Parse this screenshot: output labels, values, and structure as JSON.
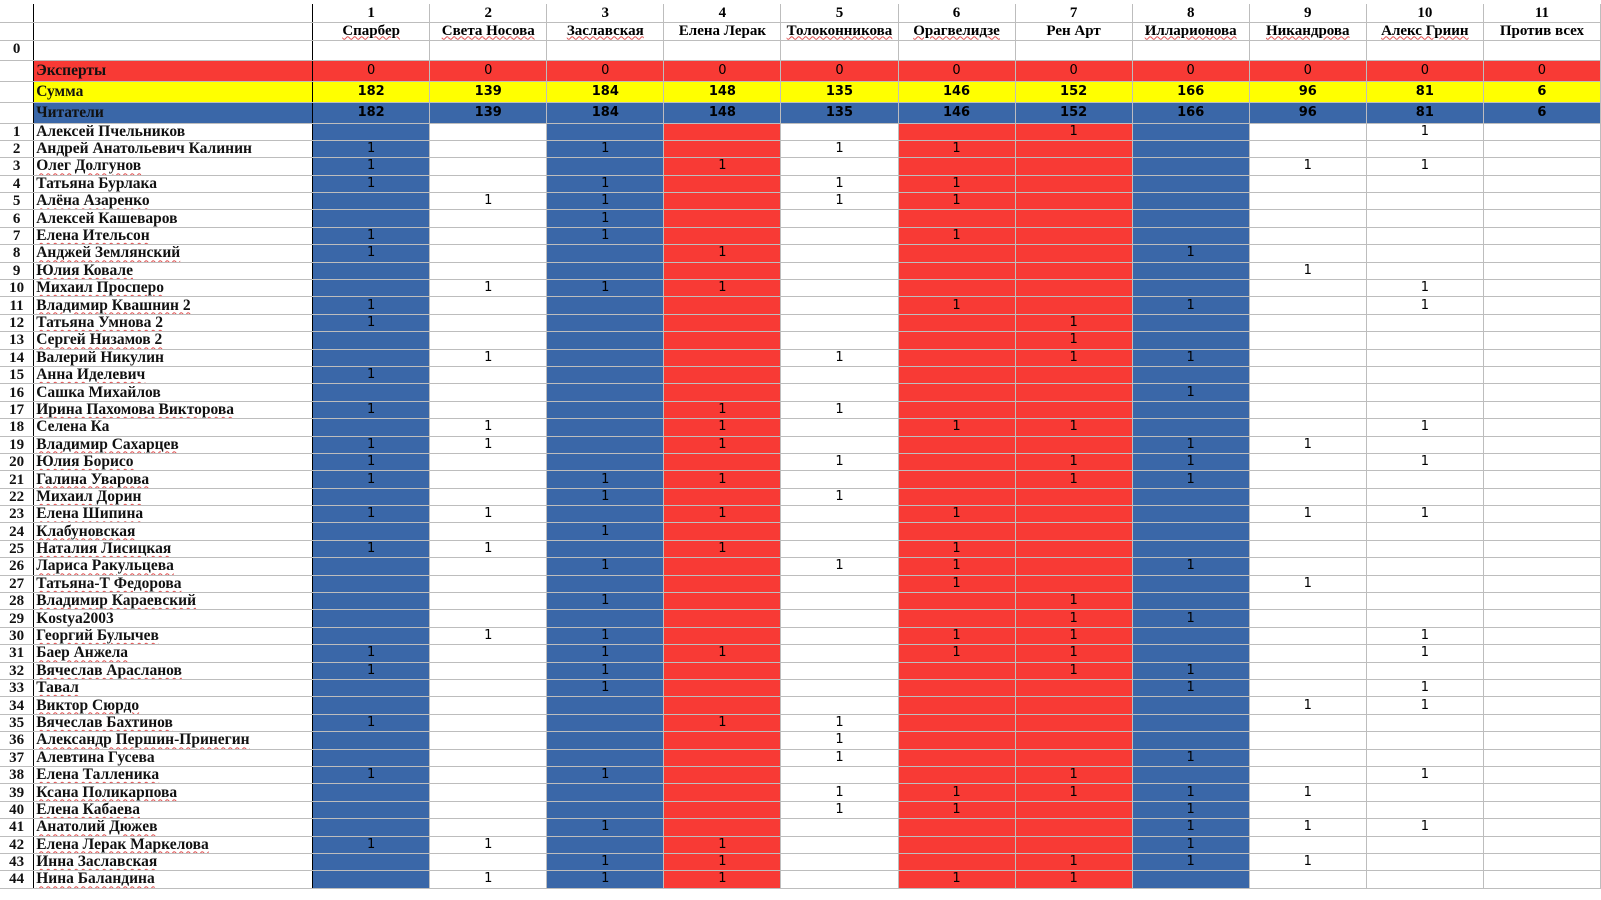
{
  "columns": [
    {
      "num": "1",
      "name": "Спарбер",
      "color": "blue",
      "wavy": true
    },
    {
      "num": "2",
      "name": "Света Носова",
      "color": "white",
      "wavy": true
    },
    {
      "num": "3",
      "name": "Заславская",
      "color": "blue",
      "wavy": true
    },
    {
      "num": "4",
      "name": "Елена Лерак",
      "color": "red",
      "wavy": false
    },
    {
      "num": "5",
      "name": "Толоконникова",
      "color": "white",
      "wavy": true
    },
    {
      "num": "6",
      "name": "Орагвелидзе",
      "color": "red",
      "wavy": true
    },
    {
      "num": "7",
      "name": "Рен Арт",
      "color": "red",
      "wavy": false
    },
    {
      "num": "8",
      "name": "Илларионова",
      "color": "blue",
      "wavy": true
    },
    {
      "num": "9",
      "name": "Никандрова",
      "color": "white",
      "wavy": true
    },
    {
      "num": "10",
      "name": "Алекс Гриин",
      "color": "white",
      "wavy": true
    },
    {
      "num": "11",
      "name": "Против всех",
      "color": "white",
      "wavy": false
    }
  ],
  "zero_row_label": "0",
  "summary": {
    "experts": {
      "label": "Эксперты",
      "values": [
        "0",
        "0",
        "0",
        "0",
        "0",
        "0",
        "0",
        "0",
        "0",
        "0",
        "0"
      ]
    },
    "sum": {
      "label": "Сумма",
      "values": [
        "182",
        "139",
        "184",
        "148",
        "135",
        "146",
        "152",
        "166",
        "96",
        "81",
        "6"
      ]
    },
    "readers": {
      "label": "Читатели",
      "values": [
        "182",
        "139",
        "184",
        "148",
        "135",
        "146",
        "152",
        "166",
        "96",
        "81",
        "6"
      ]
    }
  },
  "colors": {
    "blue": "#3a67a8",
    "red": "#f83a35",
    "yellow": "#ffff00"
  },
  "rows": [
    {
      "n": "1",
      "name": "Алексей Пчельников",
      "wavy": false,
      "v": [
        "",
        "",
        "",
        "",
        "",
        "",
        "1",
        "",
        "",
        "1",
        ""
      ]
    },
    {
      "n": "2",
      "name": "Андрей Анатольевич Калинин",
      "wavy": false,
      "v": [
        "1",
        "",
        "1",
        "",
        "1",
        "1",
        "",
        "",
        "",
        "",
        ""
      ]
    },
    {
      "n": "3",
      "name": "Олег Долгунов",
      "wavy": true,
      "v": [
        "1",
        "",
        "",
        "1",
        "",
        "",
        "",
        "",
        "1",
        "1",
        ""
      ]
    },
    {
      "n": "4",
      "name": "Татьяна Бурлака",
      "wavy": false,
      "v": [
        "1",
        "",
        "1",
        "",
        "1",
        "1",
        "",
        "",
        "",
        "",
        ""
      ]
    },
    {
      "n": "5",
      "name": "Алёна Азаренко",
      "wavy": true,
      "v": [
        "",
        "1",
        "1",
        "",
        "1",
        "1",
        "",
        "",
        "",
        "",
        ""
      ]
    },
    {
      "n": "6",
      "name": "Алексей Кашеваров",
      "wavy": false,
      "v": [
        "",
        "",
        "1",
        "",
        "",
        "",
        "",
        "",
        "",
        "",
        ""
      ]
    },
    {
      "n": "7",
      "name": "Елена Ительсон",
      "wavy": true,
      "v": [
        "1",
        "",
        "1",
        "",
        "",
        "1",
        "",
        "",
        "",
        "",
        ""
      ]
    },
    {
      "n": "8",
      "name": "Анджей Землянский",
      "wavy": true,
      "v": [
        "1",
        "",
        "",
        "1",
        "",
        "",
        "",
        "1",
        "",
        "",
        ""
      ]
    },
    {
      "n": "9",
      "name": "Юлия Ковале",
      "wavy": true,
      "v": [
        "",
        "",
        "",
        "",
        "",
        "",
        "",
        "",
        "1",
        "",
        ""
      ]
    },
    {
      "n": "10",
      "name": "Михаил Просперо",
      "wavy": true,
      "v": [
        "",
        "1",
        "1",
        "1",
        "",
        "",
        "",
        "",
        "",
        "1",
        ""
      ]
    },
    {
      "n": "11",
      "name": "Владимир Квашнин 2",
      "wavy": true,
      "v": [
        "1",
        "",
        "",
        "",
        "",
        "1",
        "",
        "1",
        "",
        "1",
        ""
      ]
    },
    {
      "n": "12",
      "name": "Татьяна Умнова 2",
      "wavy": true,
      "v": [
        "1",
        "",
        "",
        "",
        "",
        "",
        "1",
        "",
        "",
        "",
        ""
      ]
    },
    {
      "n": "13",
      "name": "Сергей Низамов 2",
      "wavy": true,
      "v": [
        "",
        "",
        "",
        "",
        "",
        "",
        "1",
        "",
        "",
        "",
        ""
      ]
    },
    {
      "n": "14",
      "name": "Валерий Никулин",
      "wavy": false,
      "v": [
        "",
        "1",
        "",
        "",
        "1",
        "",
        "1",
        "1",
        "",
        "",
        ""
      ]
    },
    {
      "n": "15",
      "name": "Анна Иделевич",
      "wavy": true,
      "v": [
        "1",
        "",
        "",
        "",
        "",
        "",
        "",
        "",
        "",
        "",
        ""
      ]
    },
    {
      "n": "16",
      "name": "Сашка Михайлов",
      "wavy": false,
      "v": [
        "",
        "",
        "",
        "",
        "",
        "",
        "",
        "1",
        "",
        "",
        ""
      ]
    },
    {
      "n": "17",
      "name": "Ирина Пахомова Викторова",
      "wavy": true,
      "v": [
        "1",
        "",
        "",
        "1",
        "1",
        "",
        "",
        "",
        "",
        "",
        ""
      ]
    },
    {
      "n": "18",
      "name": "Селена Ка",
      "wavy": false,
      "v": [
        "",
        "1",
        "",
        "1",
        "",
        "1",
        "1",
        "",
        "",
        "1",
        ""
      ]
    },
    {
      "n": "19",
      "name": "Владимир Сахарцев",
      "wavy": true,
      "v": [
        "1",
        "1",
        "",
        "1",
        "",
        "",
        "",
        "1",
        "1",
        "",
        ""
      ]
    },
    {
      "n": "20",
      "name": "Юлия Борисо",
      "wavy": true,
      "v": [
        "1",
        "",
        "",
        "",
        "1",
        "",
        "1",
        "1",
        "",
        "1",
        ""
      ]
    },
    {
      "n": "21",
      "name": "Галина Уварова",
      "wavy": true,
      "v": [
        "1",
        "",
        "1",
        "1",
        "",
        "",
        "1",
        "1",
        "",
        "",
        ""
      ]
    },
    {
      "n": "22",
      "name": "Михаил Дорин",
      "wavy": true,
      "v": [
        "",
        "",
        "1",
        "",
        "1",
        "",
        "",
        "",
        "",
        "",
        ""
      ]
    },
    {
      "n": "23",
      "name": "Елена Шипина",
      "wavy": true,
      "v": [
        "1",
        "1",
        "",
        "1",
        "",
        "1",
        "",
        "",
        "1",
        "1",
        ""
      ]
    },
    {
      "n": "24",
      "name": "Клабуновская",
      "wavy": true,
      "v": [
        "",
        "",
        "1",
        "",
        "",
        "",
        "",
        "",
        "",
        "",
        ""
      ]
    },
    {
      "n": "25",
      "name": "Наталия Лисицкая",
      "wavy": true,
      "v": [
        "1",
        "1",
        "",
        "1",
        "",
        "1",
        "",
        "",
        "",
        "",
        ""
      ]
    },
    {
      "n": "26",
      "name": "Лариса Ракульцева",
      "wavy": true,
      "v": [
        "",
        "",
        "1",
        "",
        "1",
        "1",
        "",
        "1",
        "",
        "",
        ""
      ]
    },
    {
      "n": "27",
      "name": "Татьяна-Т Федорова",
      "wavy": true,
      "v": [
        "",
        "",
        "",
        "",
        "",
        "1",
        "",
        "",
        "1",
        "",
        ""
      ]
    },
    {
      "n": "28",
      "name": "Владимир Караевский",
      "wavy": true,
      "v": [
        "",
        "",
        "1",
        "",
        "",
        "",
        "1",
        "",
        "",
        "",
        ""
      ]
    },
    {
      "n": "29",
      "name": "Kostya2003",
      "wavy": false,
      "v": [
        "",
        "",
        "",
        "",
        "",
        "",
        "1",
        "1",
        "",
        "",
        ""
      ]
    },
    {
      "n": "30",
      "name": "Георгий Булычев",
      "wavy": true,
      "v": [
        "",
        "1",
        "1",
        "",
        "",
        "1",
        "1",
        "",
        "",
        "1",
        ""
      ]
    },
    {
      "n": "31",
      "name": "Баер Анжела",
      "wavy": true,
      "v": [
        "1",
        "",
        "1",
        "1",
        "",
        "1",
        "1",
        "",
        "",
        "1",
        ""
      ]
    },
    {
      "n": "32",
      "name": "Вячеслав Арасланов",
      "wavy": true,
      "v": [
        "1",
        "",
        "1",
        "",
        "",
        "",
        "1",
        "1",
        "",
        "",
        ""
      ]
    },
    {
      "n": "33",
      "name": "Тавал",
      "wavy": true,
      "v": [
        "",
        "",
        "1",
        "",
        "",
        "",
        "",
        "1",
        "",
        "1",
        ""
      ]
    },
    {
      "n": "34",
      "name": "Виктор Сюрдо",
      "wavy": true,
      "v": [
        "",
        "",
        "",
        "",
        "",
        "",
        "",
        "",
        "1",
        "1",
        ""
      ]
    },
    {
      "n": "35",
      "name": "Вячеслав Бахтинов",
      "wavy": true,
      "v": [
        "1",
        "",
        "",
        "1",
        "1",
        "",
        "",
        "",
        "",
        "",
        ""
      ]
    },
    {
      "n": "36",
      "name": "Александр Першин-Принегин",
      "wavy": true,
      "v": [
        "",
        "",
        "",
        "",
        "1",
        "",
        "",
        "",
        "",
        "",
        ""
      ]
    },
    {
      "n": "37",
      "name": "Алевтина Гусева",
      "wavy": false,
      "v": [
        "",
        "",
        "",
        "",
        "1",
        "",
        "",
        "1",
        "",
        "",
        ""
      ]
    },
    {
      "n": "38",
      "name": "Елена Талленика",
      "wavy": true,
      "v": [
        "1",
        "",
        "1",
        "",
        "",
        "",
        "1",
        "",
        "",
        "1",
        ""
      ]
    },
    {
      "n": "39",
      "name": "Ксана Поликарпова",
      "wavy": true,
      "v": [
        "",
        "",
        "",
        "",
        "1",
        "1",
        "1",
        "1",
        "1",
        "",
        ""
      ]
    },
    {
      "n": "40",
      "name": "Елена Кабаева",
      "wavy": true,
      "v": [
        "",
        "",
        "",
        "",
        "1",
        "1",
        "",
        "1",
        "",
        "",
        ""
      ]
    },
    {
      "n": "41",
      "name": "Анатолий Дюжев",
      "wavy": true,
      "v": [
        "",
        "",
        "1",
        "",
        "",
        "",
        "",
        "1",
        "1",
        "1",
        ""
      ]
    },
    {
      "n": "42",
      "name": "Елена Лерак Маркелова",
      "wavy": true,
      "v": [
        "1",
        "1",
        "",
        "1",
        "",
        "",
        "",
        "1",
        "",
        "",
        ""
      ]
    },
    {
      "n": "43",
      "name": "Инна Заславская",
      "wavy": true,
      "v": [
        "",
        "",
        "1",
        "1",
        "",
        "",
        "1",
        "1",
        "1",
        "",
        ""
      ]
    },
    {
      "n": "44",
      "name": "Нина Баландина",
      "wavy": true,
      "v": [
        "",
        "1",
        "1",
        "1",
        "",
        "1",
        "1",
        "",
        "",
        "",
        ""
      ]
    }
  ]
}
